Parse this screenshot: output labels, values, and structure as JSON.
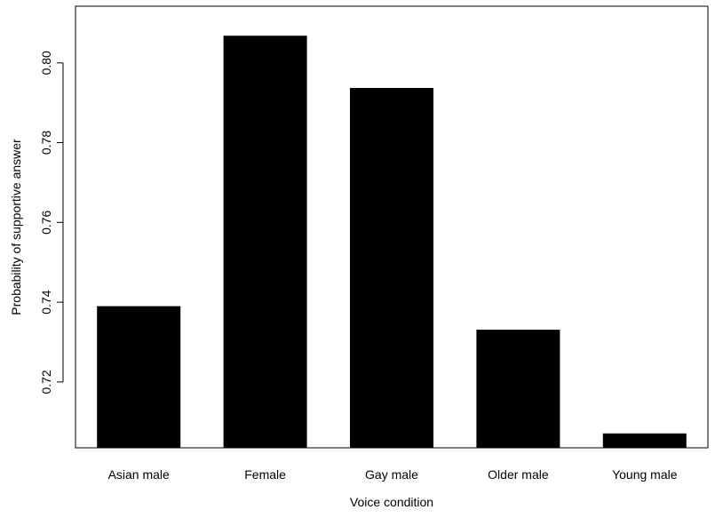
{
  "chart_data": {
    "type": "bar",
    "title": "",
    "xlabel": "Voice condition",
    "ylabel": "Probability of supportive answer",
    "categories": [
      "Asian male",
      "Female",
      "Gay male",
      "Older male",
      "Young male"
    ],
    "values": [
      0.739,
      0.8068,
      0.7937,
      0.7331,
      0.7071
    ],
    "ylim": [
      0.7035,
      0.8142
    ],
    "yticks": [
      0.72,
      0.74,
      0.76,
      0.78,
      0.8
    ],
    "ytick_labels": [
      "0.72",
      "0.74",
      "0.76",
      "0.78",
      "0.80"
    ],
    "bar_color": "#000000",
    "grid": false,
    "legend": "none"
  }
}
